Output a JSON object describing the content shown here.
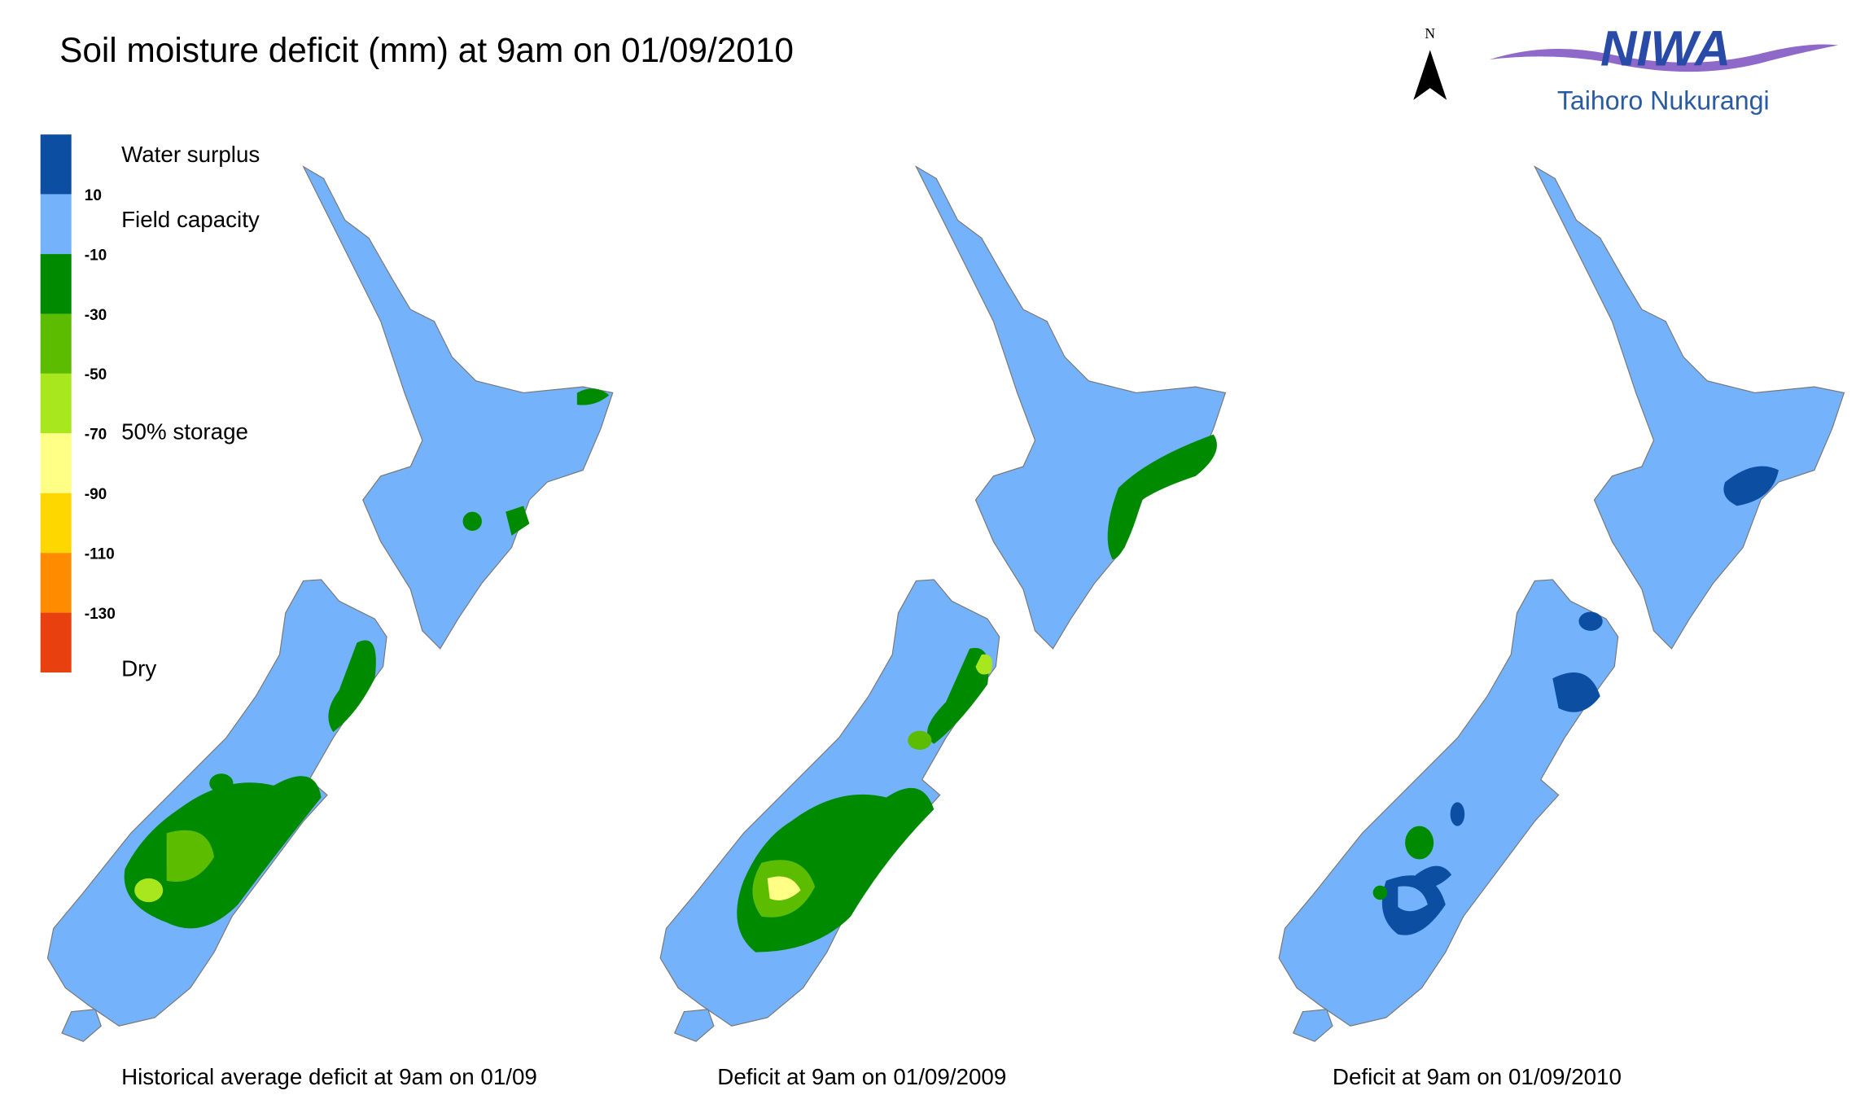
{
  "title": "Soil moisture deficit (mm) at  9am on 01/09/2010",
  "legend": {
    "colors": [
      "#0b4ea2",
      "#74b3fb",
      "#008a00",
      "#5cbc00",
      "#a8e61e",
      "#ffff85",
      "#ffd700",
      "#ff8c00",
      "#e8400e"
    ],
    "ticks": [
      10,
      -10,
      -30,
      -50,
      -70,
      -90,
      -110,
      -130
    ],
    "labels": [
      "Water surplus",
      "Field capacity",
      "50% storage",
      "Dry"
    ]
  },
  "maps": [
    {
      "caption": "Historical average deficit at  9am on 01/09"
    },
    {
      "caption": "Deficit at  9am on 01/09/2009"
    },
    {
      "caption": "Deficit at  9am on 01/09/2010"
    }
  ],
  "north": "N",
  "logo": {
    "name": "NIWA",
    "subtitle": "Taihoro Nukurangi"
  }
}
